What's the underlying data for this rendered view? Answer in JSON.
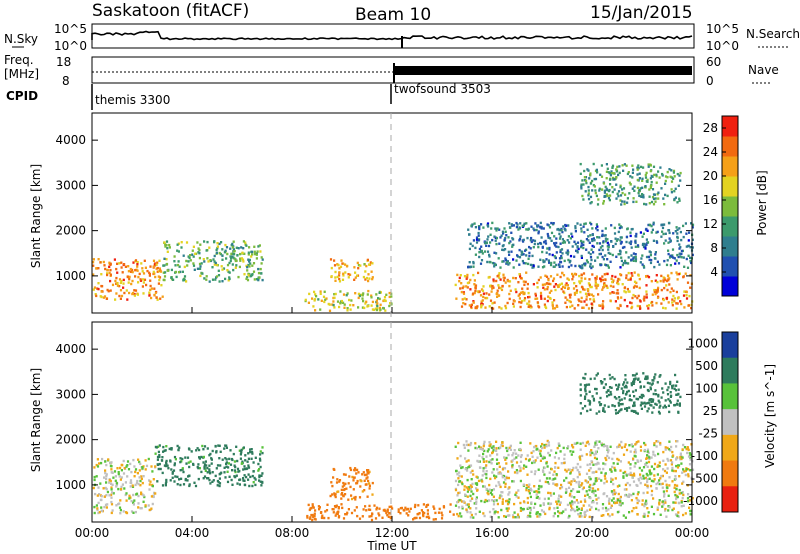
{
  "header": {
    "station": "Saskatoon (fitACF)",
    "beam": "Beam 10",
    "date": "15/Jan/2015"
  },
  "status_panels": {
    "nsky_label": "N.Sky",
    "nsky_ticks": [
      "10^5",
      "10^0"
    ],
    "nsearch_label": "N.Search",
    "nsearch_ticks": [
      "10^5",
      "10^0"
    ],
    "freq_label": "Freq.",
    "freq_unit": "[MHz]",
    "freq_ticks": [
      "18",
      "8"
    ],
    "nave_label": "Nave",
    "nave_ticks": [
      "60",
      "0"
    ],
    "cpid_label": "CPID",
    "cpid_modes": [
      {
        "name": "themis 3300",
        "start_hour": 0
      },
      {
        "name": "twofsound 3503",
        "start_hour": 12.0
      }
    ]
  },
  "chart_data": [
    {
      "type": "heatmap",
      "panel": "power",
      "ylabel": "Slant Range [km]",
      "xlabel": "Time UT",
      "ylim": [
        180,
        4600
      ],
      "xlim": [
        0,
        24
      ],
      "y_ticks": [
        "1000",
        "2000",
        "3000",
        "4000"
      ],
      "x_ticks": [
        "00:00",
        "04:00",
        "08:00",
        "12:00",
        "16:00",
        "20:00",
        "00:00"
      ],
      "colorbar": {
        "label": "Power [dB]",
        "ticks": [
          "4",
          "8",
          "12",
          "16",
          "20",
          "24",
          "28"
        ],
        "range": [
          0,
          30
        ]
      },
      "features": [
        {
          "x0": 0.0,
          "x1": 2.8,
          "y0": 500,
          "y1": 1400,
          "level": 24
        },
        {
          "x0": 2.8,
          "x1": 6.8,
          "y0": 900,
          "y1": 1800,
          "level": 14
        },
        {
          "x0": 9.5,
          "x1": 11.2,
          "y0": 900,
          "y1": 1400,
          "level": 22
        },
        {
          "x0": 8.5,
          "x1": 12.0,
          "y0": 250,
          "y1": 700,
          "level": 18
        },
        {
          "x0": 14.5,
          "x1": 24.0,
          "y0": 300,
          "y1": 1100,
          "level": 24
        },
        {
          "x0": 15.0,
          "x1": 24.0,
          "y0": 1200,
          "y1": 2200,
          "level": 8
        },
        {
          "x0": 19.5,
          "x1": 23.5,
          "y0": 2600,
          "y1": 3500,
          "level": 12
        }
      ]
    },
    {
      "type": "heatmap",
      "panel": "velocity",
      "ylabel": "Slant Range [km]",
      "xlabel": "Time UT",
      "ylim": [
        180,
        4600
      ],
      "xlim": [
        0,
        24
      ],
      "y_ticks": [
        "1000",
        "2000",
        "3000",
        "4000"
      ],
      "x_ticks": [
        "00:00",
        "04:00",
        "08:00",
        "12:00",
        "16:00",
        "20:00",
        "00:00"
      ],
      "colorbar": {
        "label": "Velocity [m s^-1]",
        "ticks": [
          "1000",
          "500",
          "100",
          "25",
          "-25",
          "-100",
          "-500",
          "-1000"
        ]
      },
      "features": [
        {
          "x0": 0.0,
          "x1": 2.5,
          "y0": 400,
          "y1": 1600,
          "level": 0
        },
        {
          "x0": 2.5,
          "x1": 6.8,
          "y0": 1000,
          "y1": 1900,
          "level": 150
        },
        {
          "x0": 9.5,
          "x1": 11.2,
          "y0": 700,
          "y1": 1400,
          "level": -150
        },
        {
          "x0": 8.5,
          "x1": 14.5,
          "y0": 250,
          "y1": 600,
          "level": -200
        },
        {
          "x0": 14.5,
          "x1": 24.0,
          "y0": 300,
          "y1": 2000,
          "level": 0
        },
        {
          "x0": 19.5,
          "x1": 23.5,
          "y0": 2600,
          "y1": 3500,
          "level": 200
        }
      ]
    }
  ]
}
